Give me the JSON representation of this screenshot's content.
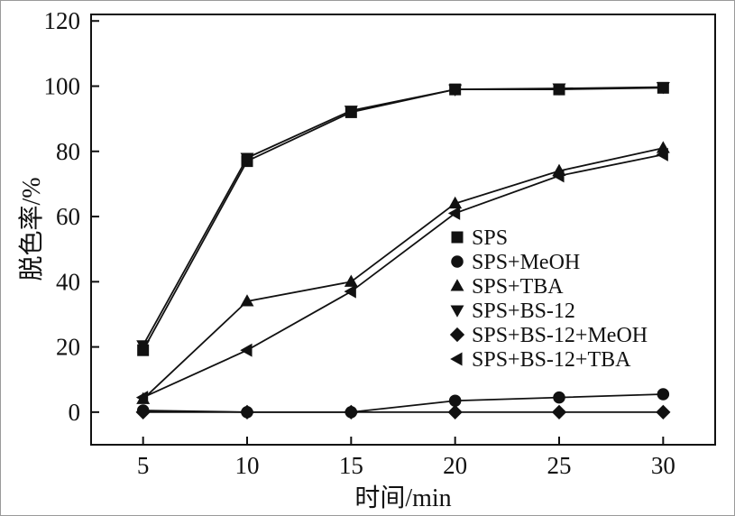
{
  "chart_data": {
    "type": "line",
    "title": "",
    "xlabel": "时间/min",
    "ylabel": "脱色率/%",
    "x": [
      5,
      10,
      15,
      20,
      25,
      30
    ],
    "xlim": [
      2.5,
      32.5
    ],
    "ylim": [
      -10,
      122
    ],
    "xticks": [
      5,
      10,
      15,
      20,
      25,
      30
    ],
    "yticks": [
      0,
      20,
      40,
      60,
      80,
      100,
      120
    ],
    "grid": false,
    "legend_position": "inside-right-middle",
    "line_color": "#111111",
    "series": [
      {
        "name": "SPS",
        "marker": "square",
        "values": [
          19,
          77,
          92,
          99,
          99,
          99.5
        ]
      },
      {
        "name": "SPS+MeOH",
        "marker": "circle",
        "values": [
          0.5,
          0,
          0,
          3.5,
          4.5,
          5.5
        ]
      },
      {
        "name": "SPS+TBA",
        "marker": "triangle-up",
        "values": [
          4,
          34,
          40,
          64,
          74,
          81
        ]
      },
      {
        "name": "SPS+BS-12",
        "marker": "triangle-down",
        "values": [
          20.5,
          78,
          92.5,
          99,
          99.3,
          99.7
        ]
      },
      {
        "name": "SPS+BS-12+MeOH",
        "marker": "diamond",
        "values": [
          0,
          0,
          0,
          0,
          0,
          0
        ]
      },
      {
        "name": "SPS+BS-12+TBA",
        "marker": "triangle-left",
        "values": [
          4.5,
          19,
          37,
          61,
          72.5,
          79
        ]
      }
    ]
  }
}
